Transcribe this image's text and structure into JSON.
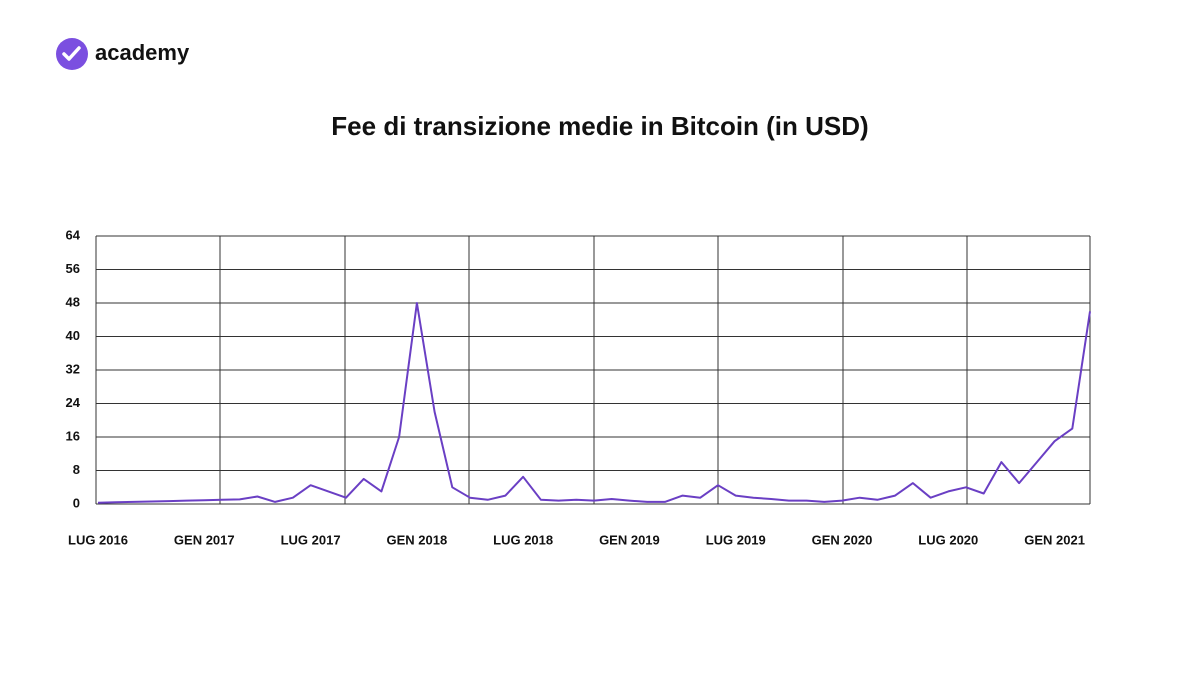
{
  "brand": "academy",
  "chart_data": {
    "type": "line",
    "title": "Fee di transizione medie in Bitcoin (in USD)",
    "categories": [
      "LUG 2016",
      null,
      null,
      null,
      null,
      null,
      "GEN 2017",
      null,
      null,
      null,
      null,
      null,
      "LUG 2017",
      null,
      null,
      null,
      null,
      null,
      "GEN 2018",
      null,
      null,
      null,
      null,
      null,
      "LUG 2018",
      null,
      null,
      null,
      null,
      null,
      "GEN 2019",
      null,
      null,
      null,
      null,
      null,
      "LUG 2019",
      null,
      null,
      null,
      null,
      null,
      "GEN 2020",
      null,
      null,
      null,
      null,
      null,
      "LUG 2020",
      null,
      null,
      null,
      null,
      null,
      "GEN 2021",
      null,
      null
    ],
    "values": [
      0.3,
      0.4,
      0.5,
      0.6,
      0.7,
      0.8,
      0.9,
      1.0,
      1.1,
      1.8,
      0.5,
      1.5,
      4.5,
      3,
      1.5,
      6,
      3,
      16,
      48,
      22,
      4,
      1.5,
      1,
      2,
      6.5,
      1,
      0.8,
      1,
      0.8,
      1.2,
      0.8,
      0.5,
      0.5,
      2,
      1.5,
      4.5,
      2,
      1.5,
      1.2,
      0.8,
      0.8,
      0.5,
      0.8,
      1.5,
      1,
      2,
      5,
      1.5,
      3,
      4,
      2.5,
      10,
      5,
      10,
      15,
      18,
      46
    ],
    "color": "#6a3fc4",
    "ylim": [
      0,
      64
    ],
    "yticks": [
      0,
      8,
      16,
      24,
      32,
      40,
      48,
      56,
      64
    ],
    "grid": true
  }
}
